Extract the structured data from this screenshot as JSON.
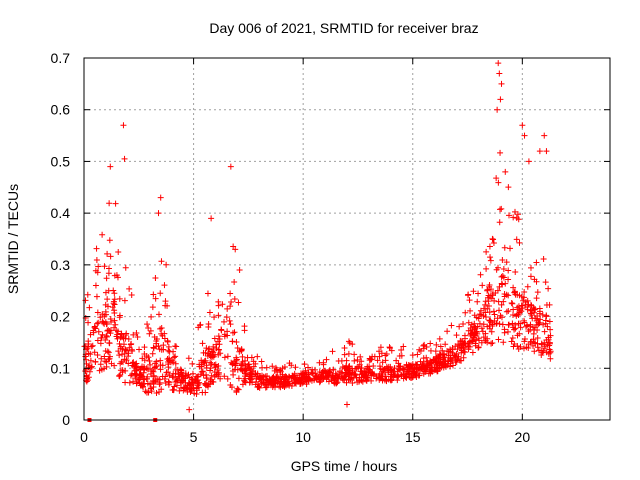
{
  "chart_data": {
    "type": "scatter",
    "title": "Day 006 of 2021, SRMTID for receiver braz",
    "xlabel": "GPS time / hours",
    "ylabel": "SRMTID / TECUs",
    "xlim": [
      0,
      24
    ],
    "ylim": [
      0,
      0.7
    ],
    "xticks": [
      "0",
      "5",
      "10",
      "15",
      "20"
    ],
    "yticks": [
      "0",
      "0.1",
      "0.2",
      "0.3",
      "0.4",
      "0.5",
      "0.6",
      "0.7"
    ],
    "grid": true,
    "marker": "+",
    "color": "#ff0000",
    "baseline_points": [
      0.25,
      3.25
    ],
    "envelope": [
      [
        0.0,
        0.09,
        0.22
      ],
      [
        0.5,
        0.12,
        0.3
      ],
      [
        1.0,
        0.15,
        0.45
      ],
      [
        1.5,
        0.13,
        0.4
      ],
      [
        2.0,
        0.1,
        0.3
      ],
      [
        2.5,
        0.08,
        0.14
      ],
      [
        3.0,
        0.07,
        0.2
      ],
      [
        3.5,
        0.1,
        0.35
      ],
      [
        4.0,
        0.08,
        0.25
      ],
      [
        4.5,
        0.07,
        0.14
      ],
      [
        5.0,
        0.06,
        0.12
      ],
      [
        5.5,
        0.08,
        0.25
      ],
      [
        6.0,
        0.1,
        0.22
      ],
      [
        6.5,
        0.11,
        0.38
      ],
      [
        7.0,
        0.09,
        0.3
      ],
      [
        7.5,
        0.08,
        0.14
      ],
      [
        8.0,
        0.07,
        0.12
      ],
      [
        9.0,
        0.07,
        0.11
      ],
      [
        10.0,
        0.075,
        0.11
      ],
      [
        11.0,
        0.08,
        0.12
      ],
      [
        12.0,
        0.08,
        0.15
      ],
      [
        13.0,
        0.085,
        0.14
      ],
      [
        14.0,
        0.085,
        0.14
      ],
      [
        15.0,
        0.09,
        0.14
      ],
      [
        16.0,
        0.1,
        0.15
      ],
      [
        16.5,
        0.11,
        0.17
      ],
      [
        17.0,
        0.12,
        0.19
      ],
      [
        17.5,
        0.14,
        0.24
      ],
      [
        18.0,
        0.16,
        0.28
      ],
      [
        18.5,
        0.18,
        0.35
      ],
      [
        19.0,
        0.2,
        0.55
      ],
      [
        19.5,
        0.18,
        0.4
      ],
      [
        20.0,
        0.17,
        0.38
      ],
      [
        20.5,
        0.16,
        0.32
      ],
      [
        21.0,
        0.15,
        0.34
      ],
      [
        21.3,
        0.14,
        0.28
      ]
    ],
    "extremes": [
      [
        1.8,
        0.57
      ],
      [
        1.85,
        0.505
      ],
      [
        1.2,
        0.49
      ],
      [
        6.7,
        0.49
      ],
      [
        18.9,
        0.69
      ],
      [
        18.95,
        0.67
      ],
      [
        19.05,
        0.65
      ],
      [
        19.0,
        0.62
      ],
      [
        18.85,
        0.6
      ],
      [
        20.0,
        0.57
      ],
      [
        20.1,
        0.55
      ],
      [
        20.3,
        0.5
      ],
      [
        20.8,
        0.52
      ],
      [
        21.0,
        0.55
      ],
      [
        21.1,
        0.52
      ],
      [
        3.4,
        0.4
      ],
      [
        3.5,
        0.43
      ],
      [
        5.8,
        0.39
      ],
      [
        6.9,
        0.33
      ],
      [
        7.1,
        0.29
      ],
      [
        4.8,
        0.02
      ],
      [
        12.0,
        0.03
      ]
    ]
  }
}
